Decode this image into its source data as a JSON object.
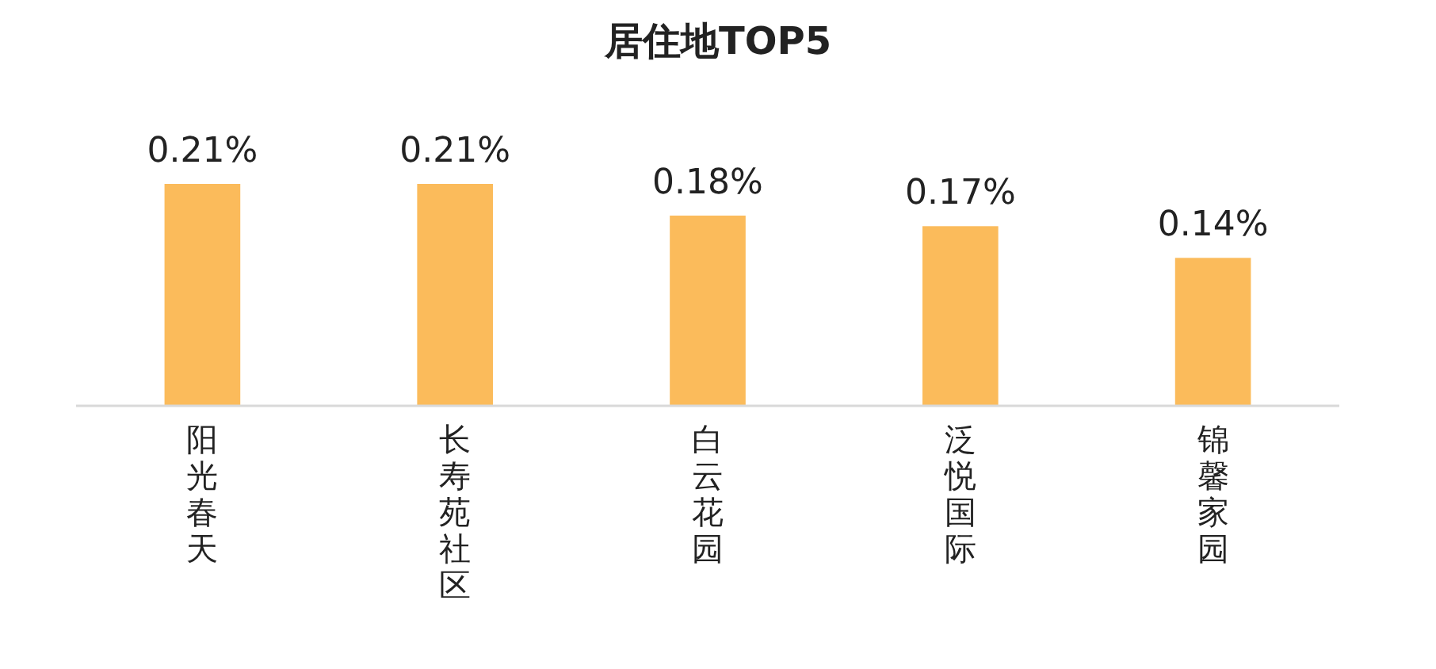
{
  "chart_data": {
    "type": "bar",
    "title": "居住地TOP5",
    "categories": [
      "阳光春天",
      "长寿苑社区",
      "白云花园",
      "泛悦国际",
      "锦馨家园"
    ],
    "values": [
      0.21,
      0.21,
      0.18,
      0.17,
      0.14
    ],
    "value_labels": [
      "0.21%",
      "0.21%",
      "0.18%",
      "0.17%",
      "0.14%"
    ],
    "color": "#fbbb5b"
  }
}
